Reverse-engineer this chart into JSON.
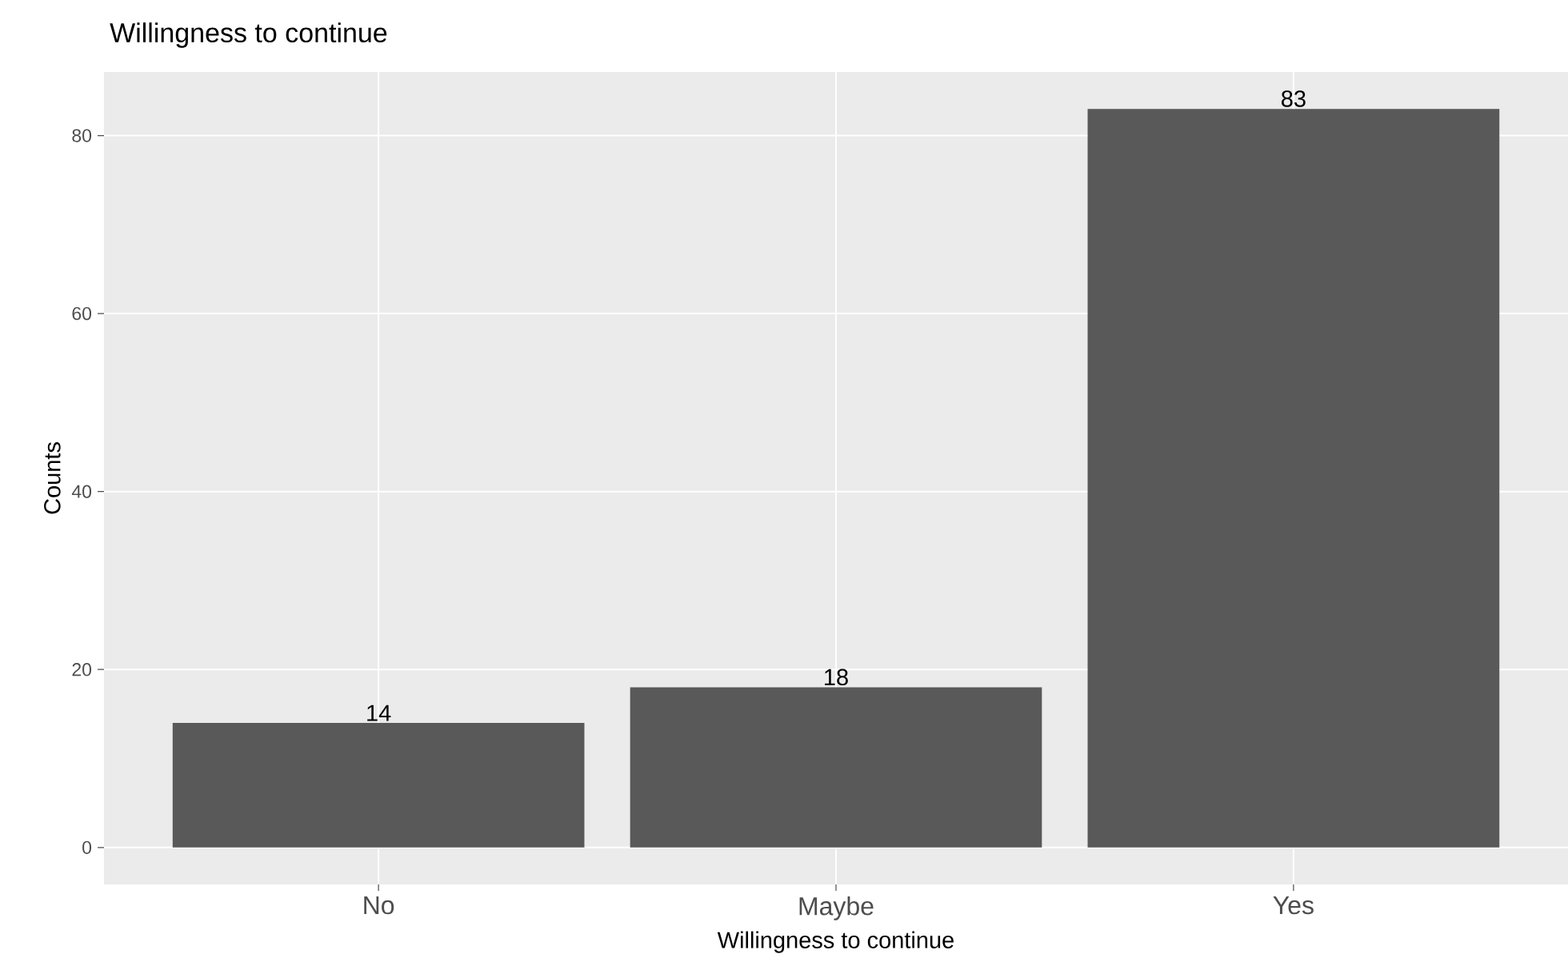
{
  "chart_data": {
    "type": "bar",
    "title": "Willingness to continue",
    "xlabel": "Willingness to continue",
    "ylabel": "Counts",
    "categories": [
      "No",
      "Maybe",
      "Yes"
    ],
    "values": [
      14,
      18,
      83
    ],
    "color": "#595959",
    "ylim": [
      -4.15,
      87.15
    ],
    "yticks": [
      0,
      20,
      40,
      60,
      80
    ],
    "grid": true,
    "data_labels": true
  }
}
